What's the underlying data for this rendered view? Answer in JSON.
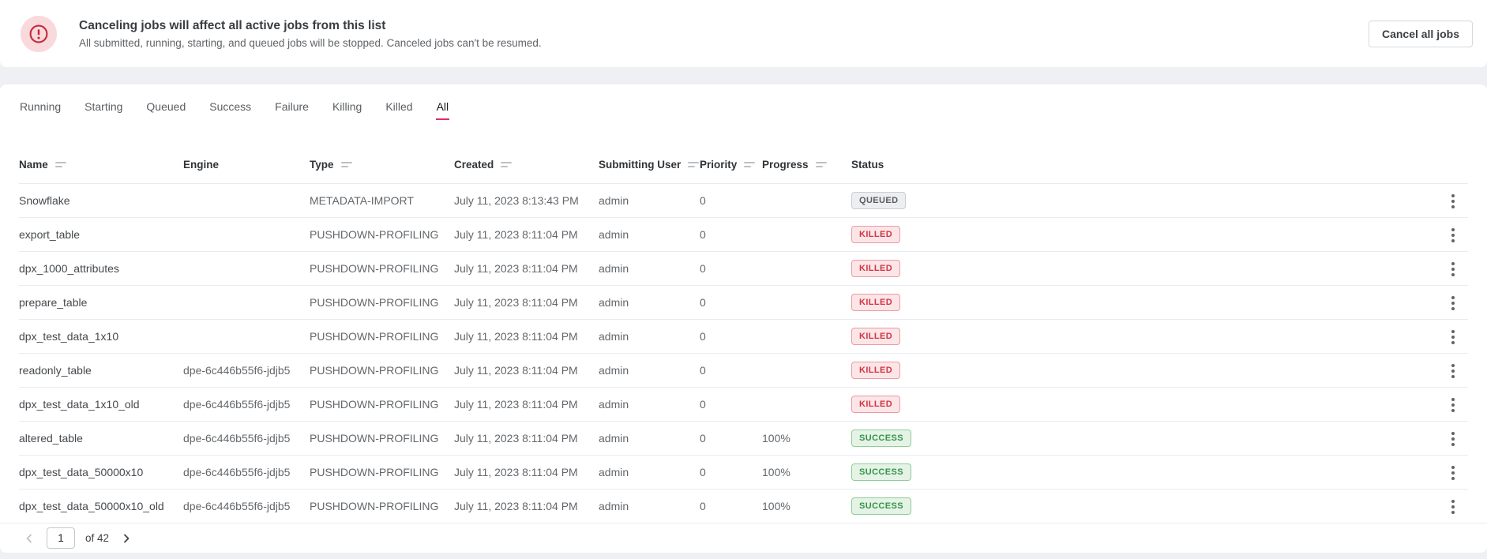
{
  "banner": {
    "title": "Canceling jobs will affect all active jobs from this list",
    "subtitle": "All submitted, running, starting, and queued jobs will be stopped. Canceled jobs can't be resumed.",
    "cancel_button": "Cancel all jobs",
    "icon": "error-outline-icon",
    "icon_color": "#c22b38",
    "icon_bg": "#f9d9dc"
  },
  "tabs": {
    "items": [
      {
        "label": "Running",
        "active": false
      },
      {
        "label": "Starting",
        "active": false
      },
      {
        "label": "Queued",
        "active": false
      },
      {
        "label": "Success",
        "active": false
      },
      {
        "label": "Failure",
        "active": false
      },
      {
        "label": "Killing",
        "active": false
      },
      {
        "label": "Killed",
        "active": false
      },
      {
        "label": "All",
        "active": true
      }
    ],
    "active_underline_color": "#e02a6e"
  },
  "table": {
    "columns": [
      {
        "label": "Name",
        "sortable": true
      },
      {
        "label": "Engine",
        "sortable": false
      },
      {
        "label": "Type",
        "sortable": true
      },
      {
        "label": "Created",
        "sortable": true
      },
      {
        "label": "Submitting User",
        "sortable": true
      },
      {
        "label": "Priority",
        "sortable": true
      },
      {
        "label": "Progress",
        "sortable": true
      },
      {
        "label": "Status",
        "sortable": false
      }
    ],
    "rows": [
      {
        "name": "Snowflake",
        "engine": "",
        "type": "METADATA-IMPORT",
        "created": "July 11, 2023 8:13:43 PM",
        "submitting_user": "admin",
        "priority": "0",
        "progress": "",
        "status": "QUEUED"
      },
      {
        "name": "export_table",
        "engine": "",
        "type": "PUSHDOWN-PROFILING",
        "created": "July 11, 2023 8:11:04 PM",
        "submitting_user": "admin",
        "priority": "0",
        "progress": "",
        "status": "KILLED"
      },
      {
        "name": "dpx_1000_attributes",
        "engine": "",
        "type": "PUSHDOWN-PROFILING",
        "created": "July 11, 2023 8:11:04 PM",
        "submitting_user": "admin",
        "priority": "0",
        "progress": "",
        "status": "KILLED"
      },
      {
        "name": "prepare_table",
        "engine": "",
        "type": "PUSHDOWN-PROFILING",
        "created": "July 11, 2023 8:11:04 PM",
        "submitting_user": "admin",
        "priority": "0",
        "progress": "",
        "status": "KILLED"
      },
      {
        "name": "dpx_test_data_1x10",
        "engine": "",
        "type": "PUSHDOWN-PROFILING",
        "created": "July 11, 2023 8:11:04 PM",
        "submitting_user": "admin",
        "priority": "0",
        "progress": "",
        "status": "KILLED"
      },
      {
        "name": "readonly_table",
        "engine": "dpe-6c446b55f6-jdjb5",
        "type": "PUSHDOWN-PROFILING",
        "created": "July 11, 2023 8:11:04 PM",
        "submitting_user": "admin",
        "priority": "0",
        "progress": "",
        "status": "KILLED"
      },
      {
        "name": "dpx_test_data_1x10_old",
        "engine": "dpe-6c446b55f6-jdjb5",
        "type": "PUSHDOWN-PROFILING",
        "created": "July 11, 2023 8:11:04 PM",
        "submitting_user": "admin",
        "priority": "0",
        "progress": "",
        "status": "KILLED"
      },
      {
        "name": "altered_table",
        "engine": "dpe-6c446b55f6-jdjb5",
        "type": "PUSHDOWN-PROFILING",
        "created": "July 11, 2023 8:11:04 PM",
        "submitting_user": "admin",
        "priority": "0",
        "progress": "100%",
        "status": "SUCCESS"
      },
      {
        "name": "dpx_test_data_50000x10",
        "engine": "dpe-6c446b55f6-jdjb5",
        "type": "PUSHDOWN-PROFILING",
        "created": "July 11, 2023 8:11:04 PM",
        "submitting_user": "admin",
        "priority": "0",
        "progress": "100%",
        "status": "SUCCESS"
      },
      {
        "name": "dpx_test_data_50000x10_old",
        "engine": "dpe-6c446b55f6-jdjb5",
        "type": "PUSHDOWN-PROFILING",
        "created": "July 11, 2023 8:11:04 PM",
        "submitting_user": "admin",
        "priority": "0",
        "progress": "100%",
        "status": "SUCCESS"
      }
    ],
    "status_colors": {
      "queued": {
        "bg": "#eceef0",
        "border": "#c9cdd2",
        "text": "#595d61"
      },
      "killed": {
        "bg": "#fbe5e7",
        "border": "#ec9ba4",
        "text": "#d13544"
      },
      "success": {
        "bg": "#e5f3e6",
        "border": "#8ecd97",
        "text": "#34944a"
      }
    }
  },
  "pagination": {
    "current_page": "1",
    "of_label": "of 42",
    "prev_enabled": false,
    "next_enabled": true
  }
}
